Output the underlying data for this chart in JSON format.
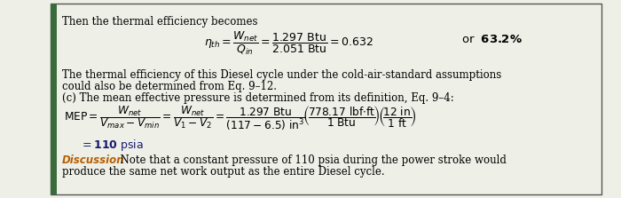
{
  "background_color": "#eef0e8",
  "border_color": "#555555",
  "left_bar_color": "#3a6b3a",
  "title_line": "Then the thermal efficiency becomes",
  "body1_line1": "The thermal efficiency of this Diesel cycle under the cold-air-standard assumptions",
  "body1_line2": "could also be determined from Eq. 9–12.",
  "body2": "(c) The mean effective pressure is determined from its definition, Eq. 9–4:",
  "eq3_result": "= 110 psia",
  "discussion_label": "Discussion",
  "discussion_body": "  Note that a constant pressure of 110 psia during the power stroke would",
  "discussion_body2": "produce the same net work output as the entire Diesel cycle.",
  "font_size_body": 8.5,
  "font_size_eq": 9.0,
  "discussion_color": "#b86000"
}
